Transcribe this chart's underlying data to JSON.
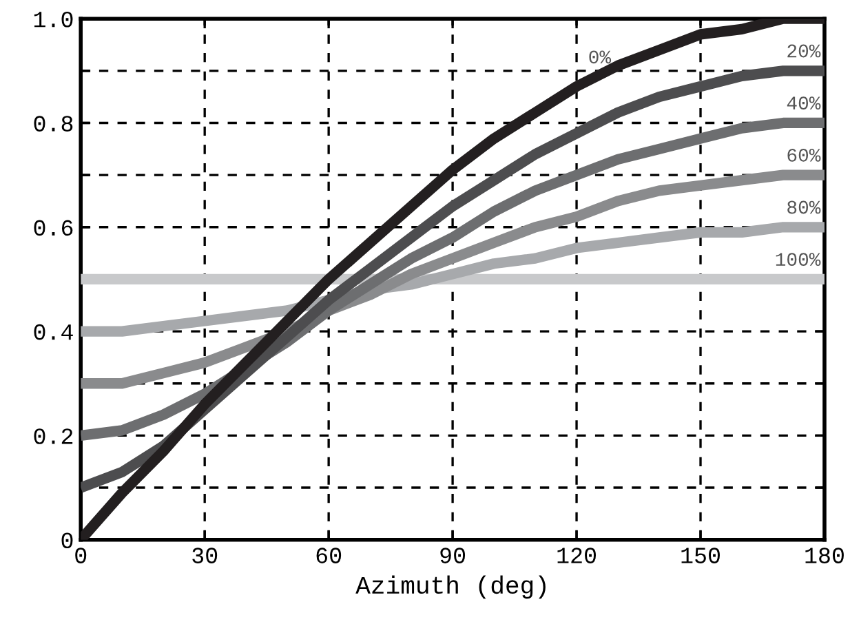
{
  "chart_data": {
    "type": "line",
    "xlabel": "Azimuth (deg)",
    "x": [
      0,
      10,
      20,
      30,
      40,
      50,
      60,
      70,
      80,
      90,
      100,
      110,
      120,
      130,
      140,
      150,
      160,
      170,
      180
    ],
    "series": [
      {
        "name": "0%",
        "color": "#231f20",
        "values": [
          0,
          0.09,
          0.17,
          0.26,
          0.34,
          0.42,
          0.5,
          0.57,
          0.64,
          0.71,
          0.77,
          0.82,
          0.87,
          0.91,
          0.94,
          0.97,
          0.98,
          1.0,
          1.0
        ]
      },
      {
        "name": "20%",
        "color": "#4d4d4f",
        "values": [
          0.1,
          0.13,
          0.18,
          0.25,
          0.32,
          0.39,
          0.46,
          0.52,
          0.58,
          0.64,
          0.69,
          0.74,
          0.78,
          0.82,
          0.85,
          0.87,
          0.89,
          0.9,
          0.9
        ]
      },
      {
        "name": "40%",
        "color": "#6d6e70",
        "values": [
          0.2,
          0.21,
          0.24,
          0.28,
          0.33,
          0.38,
          0.44,
          0.49,
          0.54,
          0.58,
          0.63,
          0.67,
          0.7,
          0.73,
          0.75,
          0.77,
          0.79,
          0.8,
          0.8
        ]
      },
      {
        "name": "60%",
        "color": "#8a8b8d",
        "values": [
          0.3,
          0.3,
          0.32,
          0.34,
          0.37,
          0.4,
          0.44,
          0.47,
          0.51,
          0.54,
          0.57,
          0.6,
          0.62,
          0.65,
          0.67,
          0.68,
          0.69,
          0.7,
          0.7
        ]
      },
      {
        "name": "80%",
        "color": "#a7a9ac",
        "values": [
          0.4,
          0.4,
          0.41,
          0.42,
          0.43,
          0.44,
          0.46,
          0.48,
          0.49,
          0.51,
          0.53,
          0.54,
          0.56,
          0.57,
          0.58,
          0.59,
          0.59,
          0.6,
          0.6
        ]
      },
      {
        "name": "100%",
        "color": "#c8c9cb",
        "values": [
          0.5,
          0.5,
          0.5,
          0.5,
          0.5,
          0.5,
          0.5,
          0.5,
          0.5,
          0.5,
          0.5,
          0.5,
          0.5,
          0.5,
          0.5,
          0.5,
          0.5,
          0.5,
          0.5
        ]
      }
    ],
    "xlim": [
      0,
      180
    ],
    "xticks": [
      0,
      30,
      60,
      90,
      120,
      150,
      180
    ],
    "ylim": [
      0,
      1.0
    ],
    "yticks": [
      {
        "value": 0,
        "label": "0"
      },
      {
        "value": 0.1,
        "label": null
      },
      {
        "value": 0.2,
        "label": "0.2"
      },
      {
        "value": 0.3,
        "label": null
      },
      {
        "value": 0.4,
        "label": "0.4"
      },
      {
        "value": 0.5,
        "label": null
      },
      {
        "value": 0.6,
        "label": "0.6"
      },
      {
        "value": 0.7,
        "label": null
      },
      {
        "value": 0.8,
        "label": "0.8"
      },
      {
        "value": 0.9,
        "label": null
      },
      {
        "value": 1.0,
        "label": "1.0"
      }
    ],
    "grid": true,
    "line_style": "solid",
    "marker": "none"
  }
}
